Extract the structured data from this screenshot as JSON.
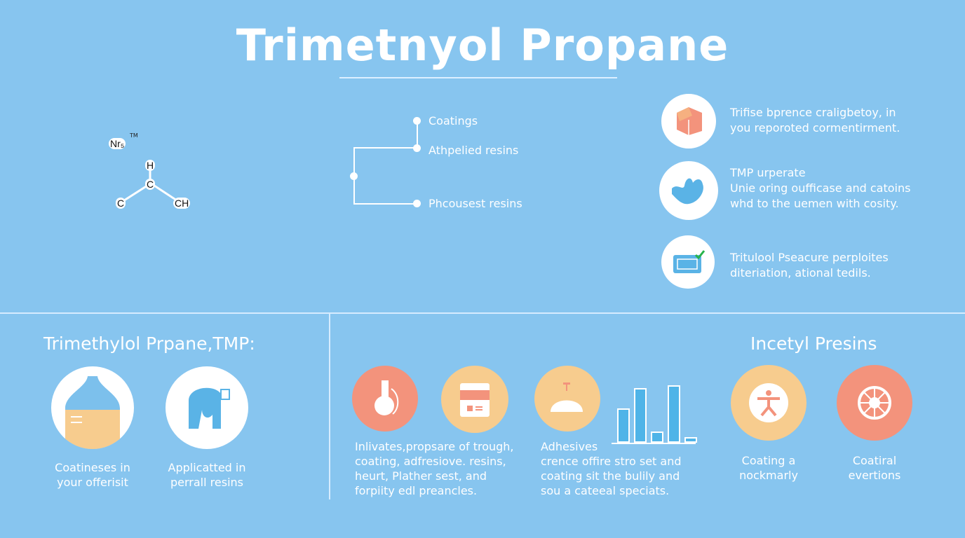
{
  "title": "Trimetnyol Propane",
  "molecule": {
    "formula": "Nr₅",
    "superscript": "TM",
    "atoms": [
      "H",
      "C",
      "C",
      "CH"
    ]
  },
  "tree": {
    "items": [
      "Coatings",
      "Athpelied resins",
      "Phcousest resins"
    ]
  },
  "features": [
    {
      "icon": "hexagon-block-icon",
      "lines": [
        "Trifise bprence craligbetoy, in",
        "you reporoted cormentirment."
      ]
    },
    {
      "icon": "hand-icon",
      "lines": [
        "TMP urperate",
        "Unie oring oufficase and catoins",
        "whd to the uemen with cosity."
      ]
    },
    {
      "icon": "document-check-icon",
      "lines": [
        "Tritulool Pseacure perploites",
        "diteriation, ational tedils."
      ]
    }
  ],
  "left_section": {
    "heading": "Trimethylol Prpane,TMP:",
    "items": [
      {
        "icon": "bottle-icon",
        "caption": [
          "Coatineses in",
          "your offerisit"
        ]
      },
      {
        "icon": "elephant-icon",
        "caption": [
          "Applicatted in",
          "perrall resins"
        ]
      }
    ]
  },
  "middle_section": {
    "icons": [
      "flask-icon",
      "calendar-icon",
      "dome-icon"
    ],
    "para1": [
      "Inlivates,propsare of trough,",
      "coating, adfresiove. resins,",
      "heurt, Plather sest,  and",
      "forpiity edl preancles."
    ],
    "para2_title": "Adhesives",
    "para2": [
      "crence offire stro set and",
      "coating sit the bulily and",
      "sou a cateeal speciats."
    ],
    "bar_levels": [
      0.6,
      0.95,
      0.2,
      1.0,
      0.1
    ]
  },
  "right_section": {
    "heading": "Incetyl Presins",
    "items": [
      {
        "icon": "person-icon",
        "caption": [
          "Coating a",
          "nockmarly"
        ]
      },
      {
        "icon": "wheel-icon",
        "caption": [
          "Coatiral",
          "evertions"
        ]
      }
    ]
  },
  "colors": {
    "background": "#87c5ef",
    "salmon": "#f3937c",
    "peach": "#f7cc8e",
    "white": "#ffffff"
  }
}
